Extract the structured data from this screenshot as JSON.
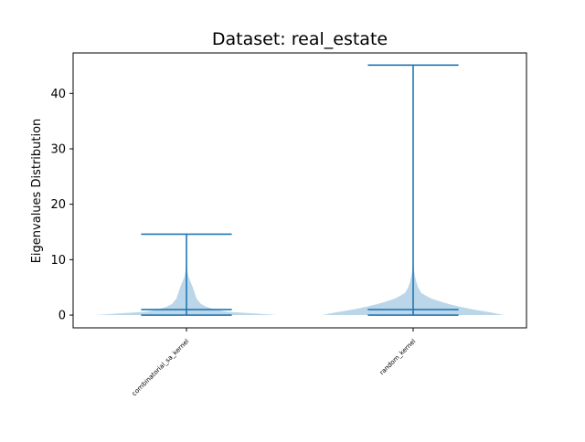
{
  "chart_data": {
    "type": "violin",
    "title": "Dataset: real_estate",
    "xlabel": "",
    "ylabel": "Eigenvalues Distribution",
    "ylim": [
      -2.3,
      47.3
    ],
    "yticks": [
      0,
      10,
      20,
      30,
      40
    ],
    "categories": [
      "combinatorial_sa_kernel",
      "random_kernel"
    ],
    "violins": [
      {
        "category": "combinatorial_sa_kernel",
        "min": 0,
        "max": 14.6,
        "median": 1.0,
        "density": [
          [
            0,
            1.0
          ],
          [
            0.3,
            0.75
          ],
          [
            0.6,
            0.45
          ],
          [
            1.0,
            0.32
          ],
          [
            1.5,
            0.22
          ],
          [
            2.0,
            0.16
          ],
          [
            3.0,
            0.11
          ],
          [
            4.0,
            0.09
          ],
          [
            5.0,
            0.07
          ],
          [
            6.0,
            0.045
          ],
          [
            7.0,
            0.02
          ],
          [
            8.0,
            0.01
          ],
          [
            10.0,
            0.004
          ],
          [
            12.0,
            0.002
          ],
          [
            14.6,
            0.001
          ]
        ]
      },
      {
        "category": "random_kernel",
        "min": 0,
        "max": 45.1,
        "median": 1.0,
        "density": [
          [
            0,
            1.0
          ],
          [
            0.5,
            0.85
          ],
          [
            1.0,
            0.67
          ],
          [
            1.5,
            0.52
          ],
          [
            2.0,
            0.39
          ],
          [
            2.5,
            0.29
          ],
          [
            3.0,
            0.2
          ],
          [
            3.5,
            0.14
          ],
          [
            4.0,
            0.09
          ],
          [
            5.0,
            0.055
          ],
          [
            6.0,
            0.035
          ],
          [
            7.0,
            0.02
          ],
          [
            8.0,
            0.01
          ],
          [
            10.0,
            0.004
          ],
          [
            15.0,
            0.002
          ],
          [
            30.0,
            0.001
          ],
          [
            45.1,
            0.001
          ]
        ]
      }
    ],
    "colors": {
      "body": "#1f77b4",
      "body_alpha": 0.3,
      "lines": "#1f77b4"
    }
  }
}
